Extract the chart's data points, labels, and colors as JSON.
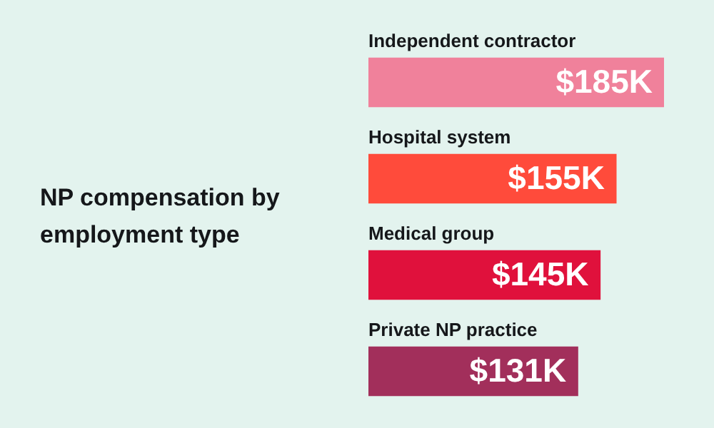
{
  "chart_data": {
    "type": "bar",
    "orientation": "horizontal",
    "tick_labels": false,
    "title": "NP compensation by employment type",
    "categories": [
      "Independent contractor",
      "Hospital system",
      "Medical group",
      "Private NP practice"
    ],
    "values": [
      185,
      155,
      145,
      131
    ],
    "colors": [
      "#f0819b",
      "#ff4b3b",
      "#e0113c",
      "#a22f5b"
    ],
    "data_labels": true,
    "value_labels": [
      "$185K",
      "$155K",
      "$145K",
      "$131K"
    ],
    "legend": false
  }
}
